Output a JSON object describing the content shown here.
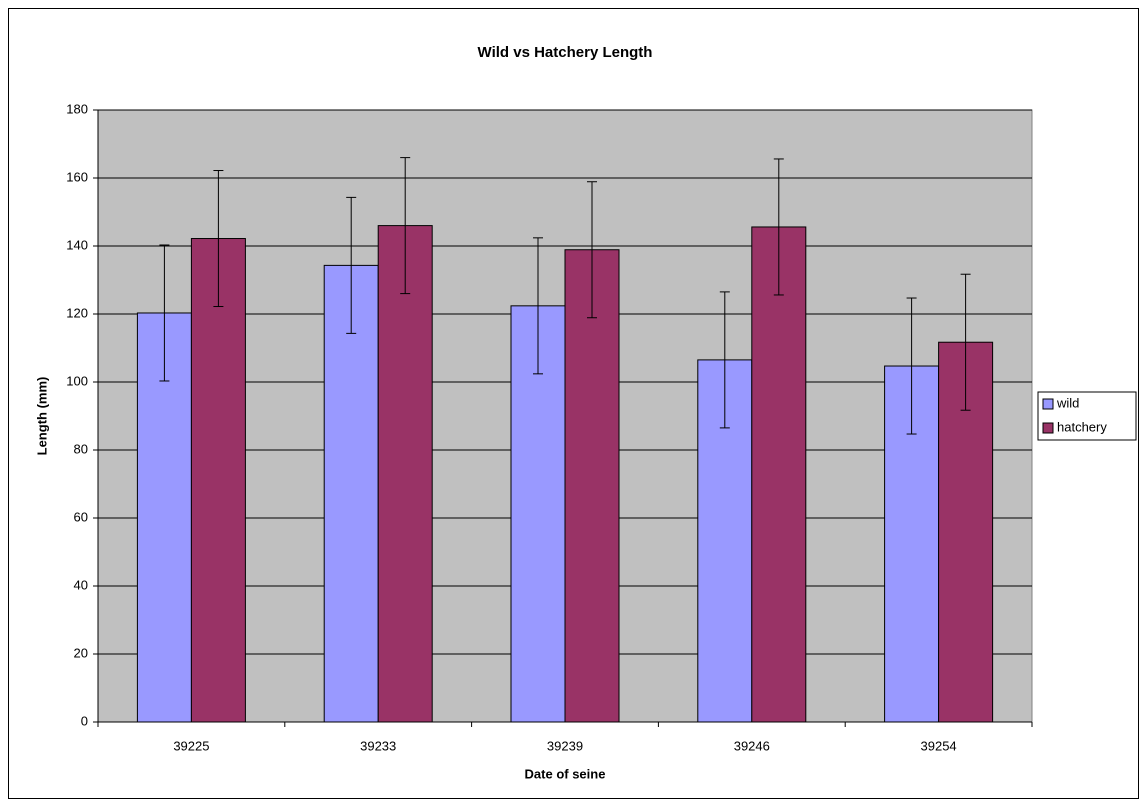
{
  "chart_data": {
    "type": "bar",
    "title": "Wild vs Hatchery Length",
    "x_label": "Date of seine",
    "y_label": "Length (mm)",
    "categories": [
      "39225",
      "39233",
      "39239",
      "39246",
      "39254"
    ],
    "series": [
      {
        "name": "wild",
        "color": "#9999ff",
        "values": [
          120.3,
          134.3,
          122.4,
          106.5,
          104.7
        ],
        "errors": [
          20,
          20,
          20,
          20,
          20
        ]
      },
      {
        "name": "hatchery",
        "color": "#993366",
        "values": [
          142.2,
          146.0,
          138.9,
          145.6,
          111.7
        ],
        "errors": [
          20,
          20,
          20,
          20,
          20
        ]
      }
    ],
    "ylim": [
      0,
      180
    ],
    "yticks": [
      0,
      20,
      40,
      60,
      80,
      100,
      120,
      140,
      160,
      180
    ],
    "grid": true,
    "legend": "right"
  }
}
